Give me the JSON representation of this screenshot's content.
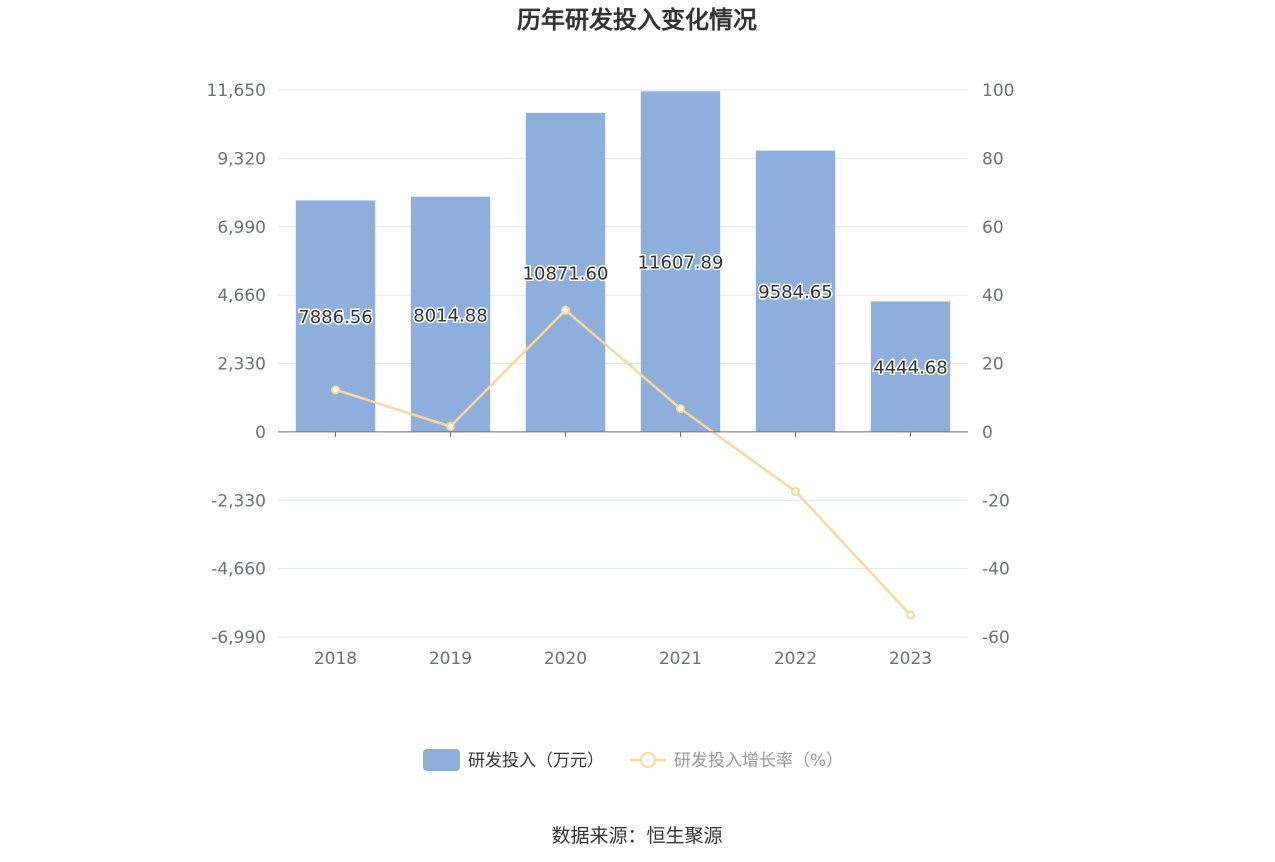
{
  "title": "历年研发投入变化情况",
  "source": "数据来源：恒生聚源",
  "colors": {
    "bar": "#8eaedb",
    "line": "#fcd79a",
    "grid": "#e0e6f1",
    "axis": "#6e7079"
  },
  "chart_data": {
    "type": "bar",
    "categories": [
      "2018",
      "2019",
      "2020",
      "2021",
      "2022",
      "2023"
    ],
    "series": [
      {
        "name": "研发投入（万元）",
        "type": "bar",
        "axis": "left",
        "values": [
          7886.56,
          8014.88,
          10871.6,
          11607.89,
          9584.65,
          4444.68
        ],
        "labels": [
          "7886.56",
          "8014.88",
          "10871.60",
          "11607.89",
          "9584.65",
          "4444.68"
        ]
      },
      {
        "name": "研发投入增长率（%）",
        "type": "line",
        "axis": "right",
        "values": [
          12.3,
          1.6,
          35.6,
          6.8,
          -17.4,
          -53.6
        ]
      }
    ],
    "y_left": {
      "ticks": [
        "11,650",
        "9,320",
        "6,990",
        "4,660",
        "2,330",
        "0",
        "-2,330",
        "-4,660",
        "-6,990"
      ],
      "range": [
        -6990,
        11650
      ]
    },
    "y_right": {
      "ticks": [
        "100",
        "80",
        "60",
        "40",
        "20",
        "0",
        "-20",
        "-40",
        "-60"
      ],
      "range": [
        -60,
        100
      ]
    },
    "grid": true,
    "legend": "bottom"
  }
}
